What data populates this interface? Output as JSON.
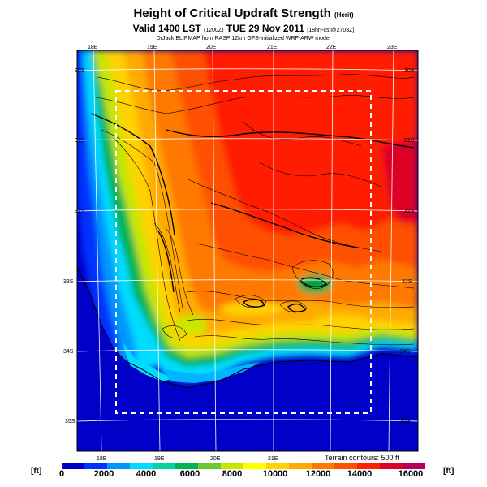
{
  "title": {
    "main": "Height of Critical Updraft Strength",
    "main_suffix": "(Hcrit)",
    "valid": "Valid 1400 LST",
    "valid_code": "(1200Z)",
    "valid_date": "TUE 29 Nov 2011",
    "valid_forecast": "[18hrFcst@2703Z]",
    "credit": "DrJack BLIPMAP from RASP 12km GFS-initialized WRF-ARW model"
  },
  "map": {
    "top_lon_labels": [
      "18E",
      "19E",
      "20E",
      "21E",
      "22E",
      "23E"
    ],
    "bottom_lon_labels": [
      "18E",
      "19E",
      "20E",
      "21E"
    ],
    "left_lat_labels": [
      "30S",
      "31S",
      "32S",
      "33S",
      "34S",
      "35S"
    ],
    "right_lat_labels": [
      "30S",
      "31S",
      "32S",
      "33S",
      "34S",
      "35S"
    ],
    "terrain_note": "Terrain contours: 500 ft"
  },
  "colorbar": {
    "unit_left": "[ft]",
    "unit_right": "[ft]",
    "ticks": [
      "0",
      "2000",
      "4000",
      "6000",
      "8000",
      "10000",
      "12000",
      "14000",
      "16000"
    ],
    "colors": [
      "#0000c8",
      "#0032ff",
      "#0096ff",
      "#00dcff",
      "#00d2a0",
      "#00b450",
      "#6ec832",
      "#c8e600",
      "#ffff00",
      "#ffd200",
      "#ffaa00",
      "#ff7800",
      "#ff5000",
      "#ff1e00",
      "#dc0028",
      "#b4005a"
    ]
  }
}
